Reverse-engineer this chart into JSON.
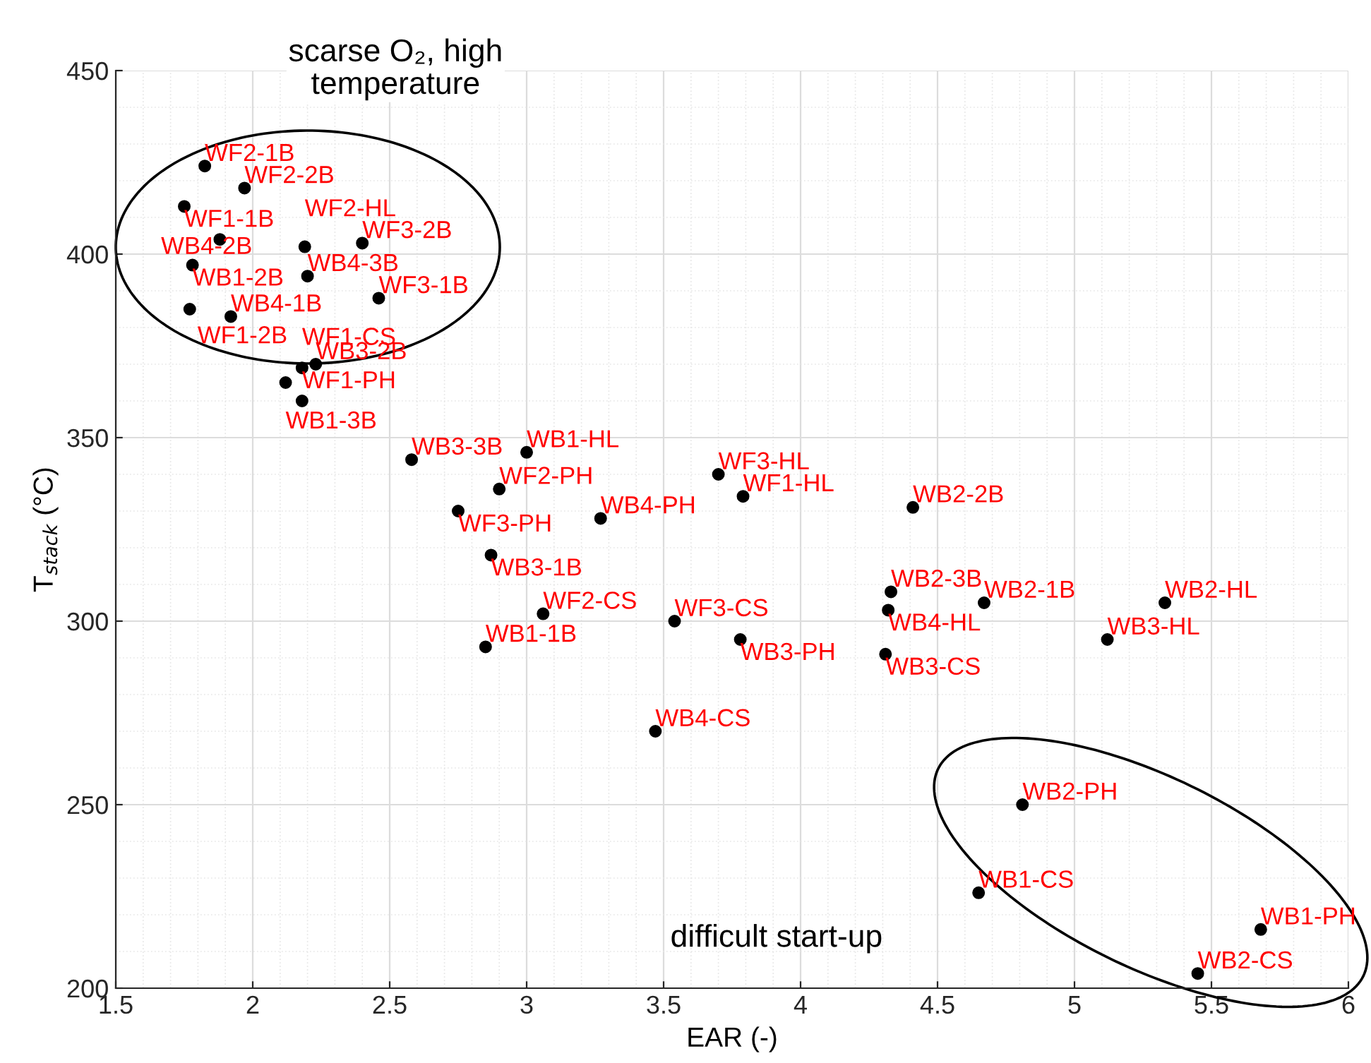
{
  "chart_data": {
    "type": "scatter",
    "xlabel": "EAR (-)",
    "ylabel": "T$_{stack}$ (°C)",
    "xlim": [
      1.5,
      6
    ],
    "ylim": [
      200,
      450
    ],
    "xticks": [
      1.5,
      2,
      2.5,
      3,
      3.5,
      4,
      4.5,
      5,
      5.5,
      6
    ],
    "yticks": [
      200,
      250,
      300,
      350,
      400,
      450
    ],
    "grid": true,
    "marker": "circle",
    "series": [
      {
        "color": "#000000",
        "x": [
          1.825,
          1.97,
          1.75,
          1.88,
          2.19,
          2.4,
          1.78,
          2.2,
          2.46,
          1.77,
          1.92,
          2.23,
          2.18,
          2.12,
          2.18,
          2.58,
          3.0,
          2.9,
          2.75,
          3.27,
          2.87,
          3.06,
          2.85,
          3.7,
          3.79,
          3.47,
          3.54,
          3.78,
          4.41,
          4.33,
          4.32,
          4.67,
          4.31,
          5.33,
          5.12,
          4.81,
          4.65,
          5.68,
          5.45
        ],
        "values": [
          424,
          418,
          413,
          404,
          402,
          403,
          397,
          394,
          388,
          385,
          383,
          370,
          369,
          365,
          360,
          344,
          346,
          336,
          330,
          328,
          318,
          302,
          293,
          340,
          334,
          270,
          300,
          295,
          331,
          308,
          303,
          305,
          291,
          305,
          295,
          250,
          226,
          216,
          204
        ]
      }
    ],
    "annotations": [
      {
        "text": "WF2-1B",
        "x": 1.825,
        "y": 424
      },
      {
        "text": "WF2-2B",
        "x": 1.97,
        "y": 418
      },
      {
        "text": "WF1-1B",
        "x": 1.75,
        "y": 413
      },
      {
        "text": "WB4-2B",
        "x": 1.88,
        "y": 404
      },
      {
        "text": "WF2-HL",
        "x": 2.19,
        "y": 402
      },
      {
        "text": "WF3-2B",
        "x": 2.4,
        "y": 403
      },
      {
        "text": "WB1-2B",
        "x": 1.78,
        "y": 397
      },
      {
        "text": "WB4-3B",
        "x": 2.2,
        "y": 394
      },
      {
        "text": "WF3-1B",
        "x": 2.46,
        "y": 388
      },
      {
        "text": "WF1-2B",
        "x": 1.77,
        "y": 385
      },
      {
        "text": "WB4-1B",
        "x": 1.92,
        "y": 383
      },
      {
        "text": "WB3-2B",
        "x": 2.23,
        "y": 370
      },
      {
        "text": "WF1-PH",
        "x": 2.18,
        "y": 369
      },
      {
        "text": "WB1-3B",
        "x": 2.12,
        "y": 365
      },
      {
        "text": "WF1-CS",
        "x": 2.18,
        "y": 360
      },
      {
        "text": "WB3-3B",
        "x": 2.58,
        "y": 344
      },
      {
        "text": "WB1-HL",
        "x": 3.0,
        "y": 346
      },
      {
        "text": "WF2-PH",
        "x": 2.9,
        "y": 336
      },
      {
        "text": "WF3-PH",
        "x": 2.75,
        "y": 330
      },
      {
        "text": "WB4-PH",
        "x": 3.27,
        "y": 328
      },
      {
        "text": "WB3-1B",
        "x": 2.87,
        "y": 318
      },
      {
        "text": "WF2-CS",
        "x": 3.06,
        "y": 302
      },
      {
        "text": "WB1-1B",
        "x": 2.85,
        "y": 293
      },
      {
        "text": "WF3-HL",
        "x": 3.7,
        "y": 340
      },
      {
        "text": "WF1-HL",
        "x": 3.79,
        "y": 334
      },
      {
        "text": "WB4-CS",
        "x": 3.47,
        "y": 270
      },
      {
        "text": "WF3-CS",
        "x": 3.54,
        "y": 300
      },
      {
        "text": "WB3-PH",
        "x": 3.78,
        "y": 295
      },
      {
        "text": "WB2-2B",
        "x": 4.41,
        "y": 331
      },
      {
        "text": "WB2-3B",
        "x": 4.33,
        "y": 308
      },
      {
        "text": "WB4-HL",
        "x": 4.32,
        "y": 303
      },
      {
        "text": "WB2-1B",
        "x": 4.67,
        "y": 305
      },
      {
        "text": "WB3-CS",
        "x": 4.31,
        "y": 291
      },
      {
        "text": "WB2-HL",
        "x": 5.33,
        "y": 305
      },
      {
        "text": "WB3-HL",
        "x": 5.12,
        "y": 295
      },
      {
        "text": "WB2-PH",
        "x": 4.81,
        "y": 250
      },
      {
        "text": "WB1-CS",
        "x": 4.65,
        "y": 226
      },
      {
        "text": "WB1-PH",
        "x": 5.68,
        "y": 216
      },
      {
        "text": "WB2-CS",
        "x": 5.45,
        "y": 204
      },
      "scarse O₂, high\ntemperature",
      "difficult start-up"
    ]
  }
}
